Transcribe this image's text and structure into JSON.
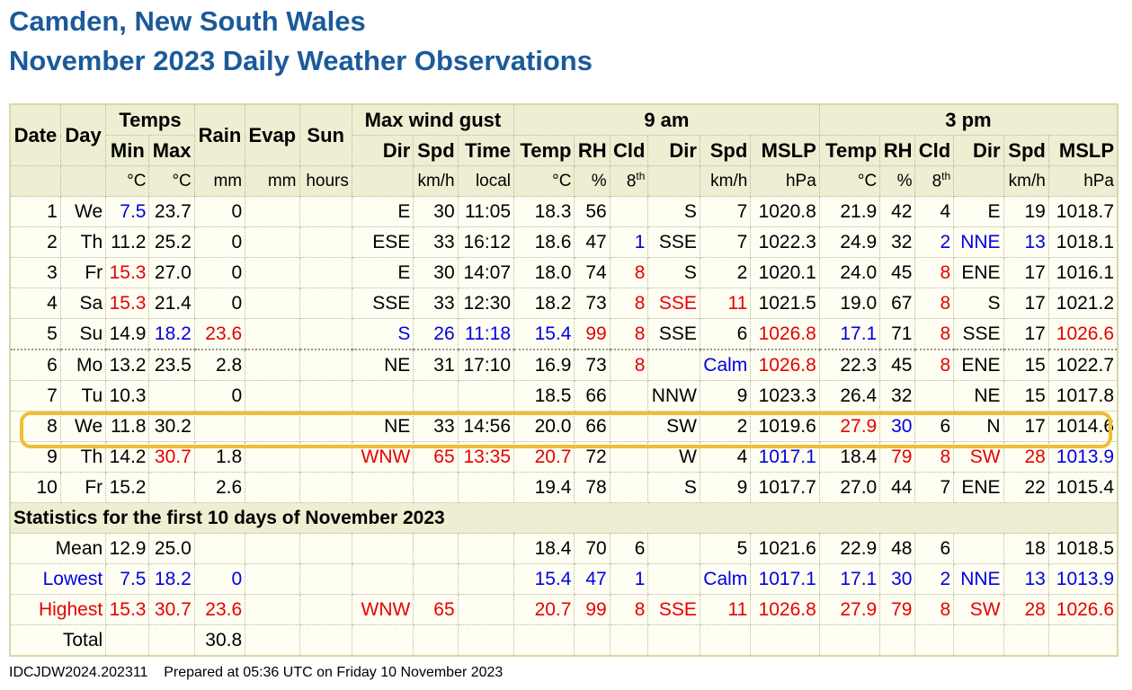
{
  "title_line1": "Camden, New South Wales",
  "title_line2": "November 2023 Daily Weather Observations",
  "headers": {
    "date": "Date",
    "day": "Day",
    "temps": "Temps",
    "min": "Min",
    "max": "Max",
    "rain": "Rain",
    "evap": "Evap",
    "sun": "Sun",
    "gust": "Max wind gust",
    "dir": "Dir",
    "spd": "Spd",
    "time": "Time",
    "am": "9 am",
    "pm": "3 pm",
    "temp": "Temp",
    "rh": "RH",
    "cld": "Cld",
    "mslp": "MSLP"
  },
  "units": {
    "degc": "°C",
    "mm": "mm",
    "hours": "hours",
    "kmh": "km/h",
    "local": "local",
    "pct": "%",
    "eighths": "8",
    "eighths_sup": "th",
    "hpa": "hPa"
  },
  "colors": {
    "blue": "#0000e6",
    "red": "#e60000",
    "title": "#1b5a9a",
    "highlight": "#f2bd33"
  },
  "rows": [
    [
      "1",
      "We",
      "7.5",
      "23.7",
      "0",
      "",
      "",
      "E",
      "30",
      "11:05",
      "18.3",
      "56",
      "",
      "S",
      "7",
      "1020.8",
      "21.9",
      "42",
      "4",
      "E",
      "19",
      "1018.7"
    ],
    [
      "2",
      "Th",
      "11.2",
      "25.2",
      "0",
      "",
      "",
      "ESE",
      "33",
      "16:12",
      "18.6",
      "47",
      "1",
      "SSE",
      "7",
      "1022.3",
      "24.9",
      "32",
      "2",
      "NNE",
      "13",
      "1018.1"
    ],
    [
      "3",
      "Fr",
      "15.3",
      "27.0",
      "0",
      "",
      "",
      "E",
      "30",
      "14:07",
      "18.0",
      "74",
      "8",
      "S",
      "2",
      "1020.1",
      "24.0",
      "45",
      "8",
      "ENE",
      "17",
      "1016.1"
    ],
    [
      "4",
      "Sa",
      "15.3",
      "21.4",
      "0",
      "",
      "",
      "SSE",
      "33",
      "12:30",
      "18.2",
      "73",
      "8",
      "SSE",
      "11",
      "1021.5",
      "19.0",
      "67",
      "8",
      "S",
      "17",
      "1021.2"
    ],
    [
      "5",
      "Su",
      "14.9",
      "18.2",
      "23.6",
      "",
      "",
      "S",
      "26",
      "11:18",
      "15.4",
      "99",
      "8",
      "SSE",
      "6",
      "1026.8",
      "17.1",
      "71",
      "8",
      "SSE",
      "17",
      "1026.6"
    ],
    [
      "6",
      "Mo",
      "13.2",
      "23.5",
      "2.8",
      "",
      "",
      "NE",
      "31",
      "17:10",
      "16.9",
      "73",
      "8",
      "",
      "Calm",
      "1026.8",
      "22.3",
      "45",
      "8",
      "ENE",
      "15",
      "1022.7"
    ],
    [
      "7",
      "Tu",
      "10.3",
      "",
      "0",
      "",
      "",
      "",
      "",
      "",
      "18.5",
      "66",
      "",
      "NNW",
      "9",
      "1023.3",
      "26.4",
      "32",
      "",
      "NE",
      "15",
      "1017.8"
    ],
    [
      "8",
      "We",
      "11.8",
      "30.2",
      "",
      "",
      "",
      "NE",
      "33",
      "14:56",
      "20.0",
      "66",
      "",
      "SW",
      "2",
      "1019.6",
      "27.9",
      "30",
      "6",
      "N",
      "17",
      "1014.6"
    ],
    [
      "9",
      "Th",
      "14.2",
      "30.7",
      "1.8",
      "",
      "",
      "WNW",
      "65",
      "13:35",
      "20.7",
      "72",
      "",
      "W",
      "4",
      "1017.1",
      "18.4",
      "79",
      "8",
      "SW",
      "28",
      "1013.9"
    ],
    [
      "10",
      "Fr",
      "15.2",
      "",
      "2.6",
      "",
      "",
      "",
      "",
      "",
      "19.4",
      "78",
      "",
      "S",
      "9",
      "1017.7",
      "27.0",
      "44",
      "7",
      "ENE",
      "22",
      "1015.4"
    ]
  ],
  "row_colors": [
    {
      "2": "b"
    },
    {
      "12": "b",
      "18": "b",
      "19": "b",
      "20": "b"
    },
    {
      "2": "r",
      "12": "r",
      "18": "r"
    },
    {
      "2": "r",
      "12": "r",
      "13": "r",
      "14": "r",
      "18": "r"
    },
    {
      "3": "b",
      "4": "r",
      "7": "b",
      "8": "b",
      "9": "b",
      "10": "b",
      "11": "r",
      "12": "r",
      "15": "r",
      "16": "b",
      "18": "r",
      "21": "r"
    },
    {
      "12": "r",
      "14": "b",
      "15": "r",
      "18": "r"
    },
    {},
    {
      "16": "r",
      "17": "b"
    },
    {
      "3": "r",
      "7": "r",
      "8": "r",
      "9": "r",
      "10": "r",
      "15": "b",
      "17": "r",
      "18": "r",
      "19": "r",
      "20": "r",
      "21": "b"
    },
    {}
  ],
  "stats_caption": "Statistics for the first 10 days of November 2023",
  "stats": [
    {
      "label": "Mean",
      "cls": "",
      "cells": [
        "12.9",
        "25.0",
        "",
        "",
        "",
        "",
        "",
        "",
        "18.4",
        "70",
        "6",
        "",
        "5",
        "1021.6",
        "22.9",
        "48",
        "6",
        "",
        "18",
        "1018.5"
      ]
    },
    {
      "label": "Lowest",
      "cls": "b",
      "cells": [
        "7.5",
        "18.2",
        "0",
        "",
        "",
        "",
        "",
        "",
        "15.4",
        "47",
        "1",
        "",
        "Calm",
        "1017.1",
        "17.1",
        "30",
        "2",
        "NNE",
        "13",
        "1013.9"
      ]
    },
    {
      "label": "Highest",
      "cls": "r",
      "cells": [
        "15.3",
        "30.7",
        "23.6",
        "",
        "",
        "WNW",
        "65",
        "",
        "20.7",
        "99",
        "8",
        "SSE",
        "11",
        "1026.8",
        "27.9",
        "79",
        "8",
        "SW",
        "28",
        "1026.6"
      ]
    },
    {
      "label": "Total",
      "cls": "",
      "cells": [
        "",
        "",
        "30.8",
        "",
        "",
        "",
        "",
        "",
        "",
        "",
        "",
        "",
        "",
        "",
        "",
        "",
        "",
        "",
        "",
        ""
      ]
    }
  ],
  "footer_id": "IDCJDW2024.202311",
  "footer_text": "Prepared at 05:36 UTC on Friday 10 November 2023"
}
